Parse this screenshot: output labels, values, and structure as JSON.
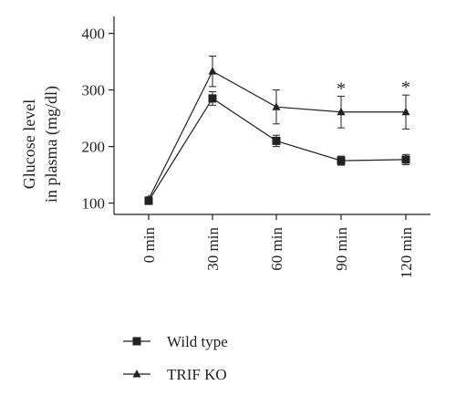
{
  "chart_data": {
    "type": "line",
    "title": "",
    "ylabel": [
      "Glucose level",
      "in plasma (mg/dl)"
    ],
    "xlabel": "",
    "categories": [
      "0 min",
      "30 min",
      "60 min",
      "90 min",
      "120 min"
    ],
    "ylim": [
      80,
      430
    ],
    "yticks": [
      100,
      200,
      300,
      400
    ],
    "grid": false,
    "legend_position": "bottom-left",
    "series": [
      {
        "name": "Wild type",
        "marker": "square",
        "values": [
          104,
          285,
          210,
          175,
          177
        ],
        "errors": [
          4,
          12,
          10,
          8,
          9
        ]
      },
      {
        "name": "TRIF KO",
        "marker": "triangle",
        "values": [
          107,
          333,
          270,
          261,
          261
        ],
        "errors": [
          4,
          27,
          30,
          28,
          30
        ]
      }
    ],
    "annotations": [
      {
        "category": "90 min",
        "text": "*"
      },
      {
        "category": "120 min",
        "text": "*"
      }
    ],
    "color": "#222222"
  }
}
